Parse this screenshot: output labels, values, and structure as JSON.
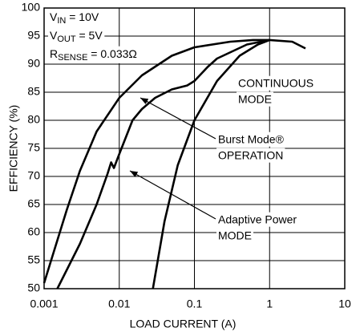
{
  "chart_data": {
    "type": "line",
    "xlabel": "LOAD CURRENT (A)",
    "ylabel": "EFFICIENCY (%)",
    "xscale": "log",
    "xlim": [
      0.001,
      10
    ],
    "xticks": [
      0.001,
      0.01,
      0.1,
      1,
      10
    ],
    "ylim": [
      50,
      100
    ],
    "yticks": [
      50,
      55,
      60,
      65,
      70,
      75,
      80,
      85,
      90,
      95,
      100
    ],
    "grid": true,
    "conditions": [
      [
        "V",
        "IN",
        " = 10V"
      ],
      [
        "V",
        "OUT",
        " = 5V"
      ],
      [
        "R",
        "SENSE",
        " = 0.033Ω"
      ]
    ],
    "series": [
      {
        "color": "#000000",
        "label": [
          "Burst Mode®",
          "OPERATION"
        ],
        "x": [
          0.001,
          0.002,
          0.003,
          0.005,
          0.01,
          0.02,
          0.05,
          0.1,
          0.3,
          0.6,
          1,
          2,
          3
        ],
        "values": [
          51,
          64,
          71,
          78,
          84,
          88,
          91.5,
          93,
          94,
          94.3,
          94.3,
          94,
          92.8
        ]
      },
      {
        "color": "#000000",
        "label": [
          "Adaptive Power",
          "MODE"
        ],
        "x": [
          0.0015,
          0.003,
          0.005,
          0.007,
          0.0078,
          0.0085,
          0.01,
          0.015,
          0.02,
          0.03,
          0.05,
          0.08,
          0.1,
          0.15,
          0.2,
          0.5,
          1
        ],
        "values": [
          50,
          58,
          65,
          70.5,
          72.5,
          71.5,
          74,
          80,
          82,
          84,
          85.5,
          86.2,
          87,
          89.5,
          91,
          93.5,
          94.3
        ]
      },
      {
        "color": "#000000",
        "label": [
          "CONTINUOUS",
          "MODE"
        ],
        "x": [
          0.028,
          0.04,
          0.06,
          0.1,
          0.2,
          0.4,
          0.7,
          1
        ],
        "values": [
          50,
          62,
          72,
          80,
          87,
          91.5,
          93.5,
          94.3
        ]
      }
    ]
  }
}
